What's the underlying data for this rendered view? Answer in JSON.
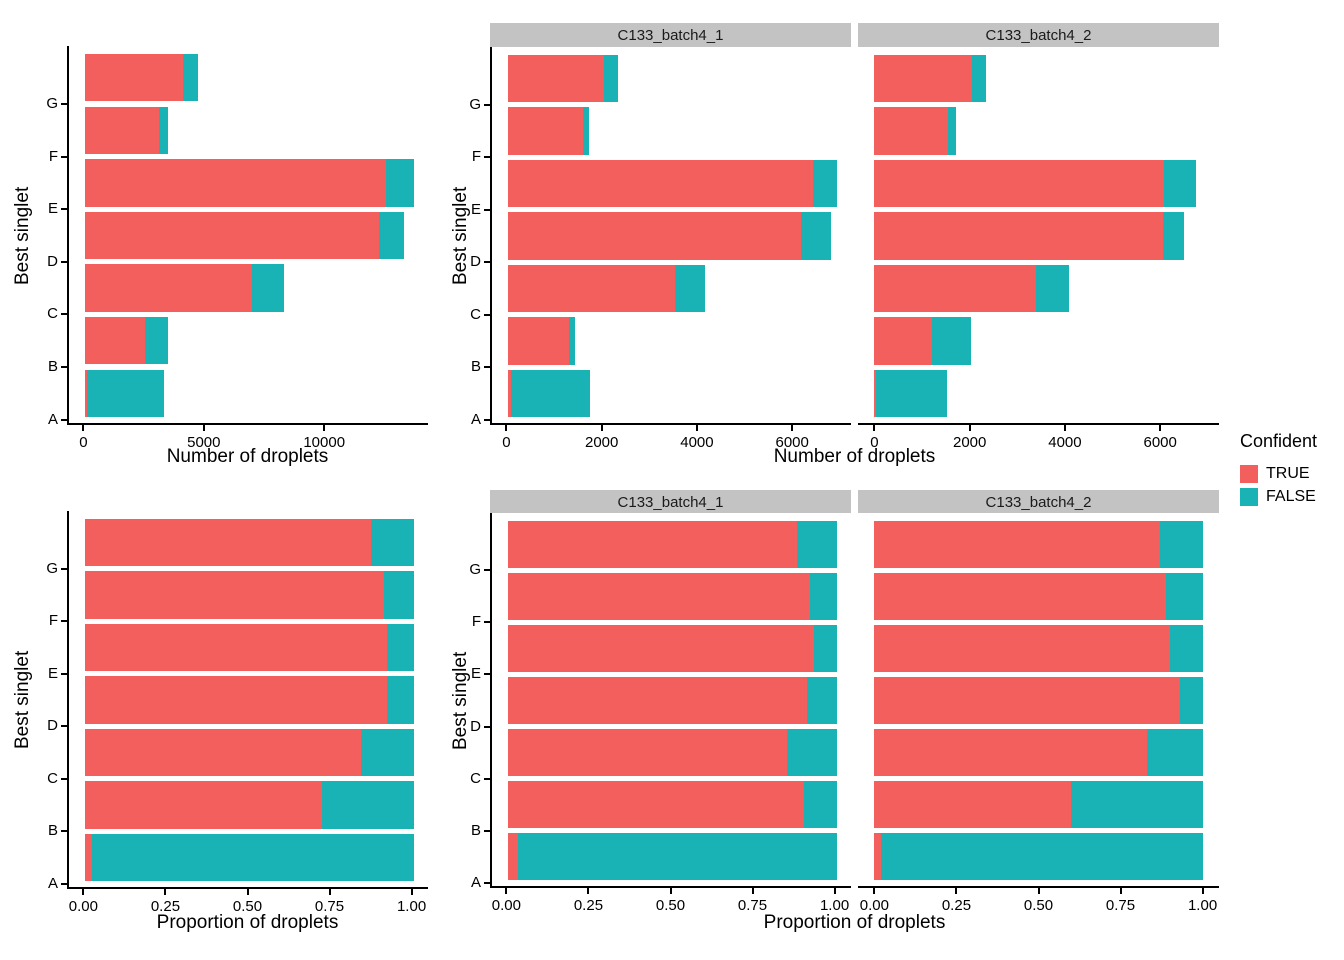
{
  "figure": {
    "background": "#ffffff",
    "colors": {
      "TRUE": "#F25F5C",
      "FALSE": "#1AB3B5",
      "strip_bg": "#C3C3C3",
      "axis_line": "#000000",
      "text": "#000000"
    },
    "legend": {
      "title": "Confident",
      "items": [
        {
          "label": "TRUE",
          "color": "#F25F5C"
        },
        {
          "label": "FALSE",
          "color": "#1AB3B5"
        }
      ]
    }
  },
  "categories_top_to_bottom": [
    "G",
    "F",
    "E",
    "D",
    "C",
    "B",
    "A"
  ],
  "chart_data": [
    {
      "id": "counts-combined",
      "type": "bar",
      "orientation": "horizontal",
      "stacked": true,
      "ylabel": "Best singlet",
      "xlabel": "Number of droplets",
      "categories": [
        "G",
        "F",
        "E",
        "D",
        "C",
        "B",
        "A"
      ],
      "series": [
        {
          "name": "TRUE",
          "values": [
            4060,
            3060,
            12470,
            12190,
            6900,
            2490,
            70
          ]
        },
        {
          "name": "FALSE",
          "values": [
            610,
            350,
            1160,
            1050,
            1340,
            960,
            3190
          ]
        }
      ],
      "x_ticks": [
        0,
        5000,
        10000
      ],
      "x_tick_labels": [
        "0",
        "5000",
        "10000"
      ],
      "xlim": [
        0,
        13630
      ],
      "grid": false,
      "legend_position": "none"
    },
    {
      "id": "counts-by-sample",
      "type": "bar",
      "orientation": "horizontal",
      "stacked": true,
      "ylabel": "Best singlet",
      "xlabel": "Number of droplets",
      "categories": [
        "G",
        "F",
        "E",
        "D",
        "C",
        "B",
        "A"
      ],
      "facets": [
        {
          "label": "C133_batch4_1",
          "series": [
            {
              "name": "TRUE",
              "values": [
                2000,
                1560,
                6400,
                6150,
                3500,
                1280,
                50
              ]
            },
            {
              "name": "FALSE",
              "values": [
                300,
                130,
                490,
                620,
                625,
                120,
                1670
              ]
            }
          ]
        },
        {
          "label": "C133_batch4_2",
          "series": [
            {
              "name": "TRUE",
              "values": [
                2050,
                1540,
                6080,
                6060,
                3390,
                1210,
                30
              ]
            },
            {
              "name": "FALSE",
              "values": [
                300,
                170,
                680,
                450,
                700,
                815,
                1490
              ]
            }
          ]
        }
      ],
      "x_ticks": [
        0,
        2000,
        4000,
        6000
      ],
      "x_tick_labels": [
        "0",
        "2000",
        "4000",
        "6000"
      ],
      "xlim": [
        0,
        6890
      ],
      "grid": false,
      "legend_position": "right"
    },
    {
      "id": "proportions-combined",
      "type": "bar",
      "orientation": "horizontal",
      "stacked": true,
      "ylabel": "Best singlet",
      "xlabel": "Proportion of droplets",
      "categories": [
        "G",
        "F",
        "E",
        "D",
        "C",
        "B",
        "A"
      ],
      "series": [
        {
          "name": "TRUE",
          "values": [
            0.87,
            0.91,
            0.92,
            0.92,
            0.84,
            0.72,
            0.02
          ]
        },
        {
          "name": "FALSE",
          "values": [
            0.13,
            0.09,
            0.08,
            0.08,
            0.16,
            0.28,
            0.98
          ]
        }
      ],
      "x_ticks": [
        0,
        0.25,
        0.5,
        0.75,
        1
      ],
      "x_tick_labels": [
        "0.00",
        "0.25",
        "0.50",
        "0.75",
        "1.00"
      ],
      "xlim": [
        0,
        1
      ],
      "grid": false,
      "legend_position": "none"
    },
    {
      "id": "proportions-by-sample",
      "type": "bar",
      "orientation": "horizontal",
      "stacked": true,
      "ylabel": "Best singlet",
      "xlabel": "Proportion of droplets",
      "categories": [
        "G",
        "F",
        "E",
        "D",
        "C",
        "B",
        "A"
      ],
      "facets": [
        {
          "label": "C133_batch4_1",
          "series": [
            {
              "name": "TRUE",
              "values": [
                0.88,
                0.92,
                0.93,
                0.91,
                0.85,
                0.9,
                0.03
              ]
            },
            {
              "name": "FALSE",
              "values": [
                0.12,
                0.08,
                0.07,
                0.09,
                0.15,
                0.1,
                0.97
              ]
            }
          ]
        },
        {
          "label": "C133_batch4_2",
          "series": [
            {
              "name": "TRUE",
              "values": [
                0.87,
                0.89,
                0.9,
                0.93,
                0.83,
                0.6,
                0.02
              ]
            },
            {
              "name": "FALSE",
              "values": [
                0.13,
                0.11,
                0.1,
                0.07,
                0.17,
                0.4,
                0.98
              ]
            }
          ]
        }
      ],
      "x_ticks": [
        0,
        0.25,
        0.5,
        0.75,
        1
      ],
      "x_tick_labels": [
        "0.00",
        "0.25",
        "0.50",
        "0.75",
        "1.00"
      ],
      "xlim": [
        0,
        1
      ],
      "grid": false,
      "legend_position": "none"
    }
  ]
}
